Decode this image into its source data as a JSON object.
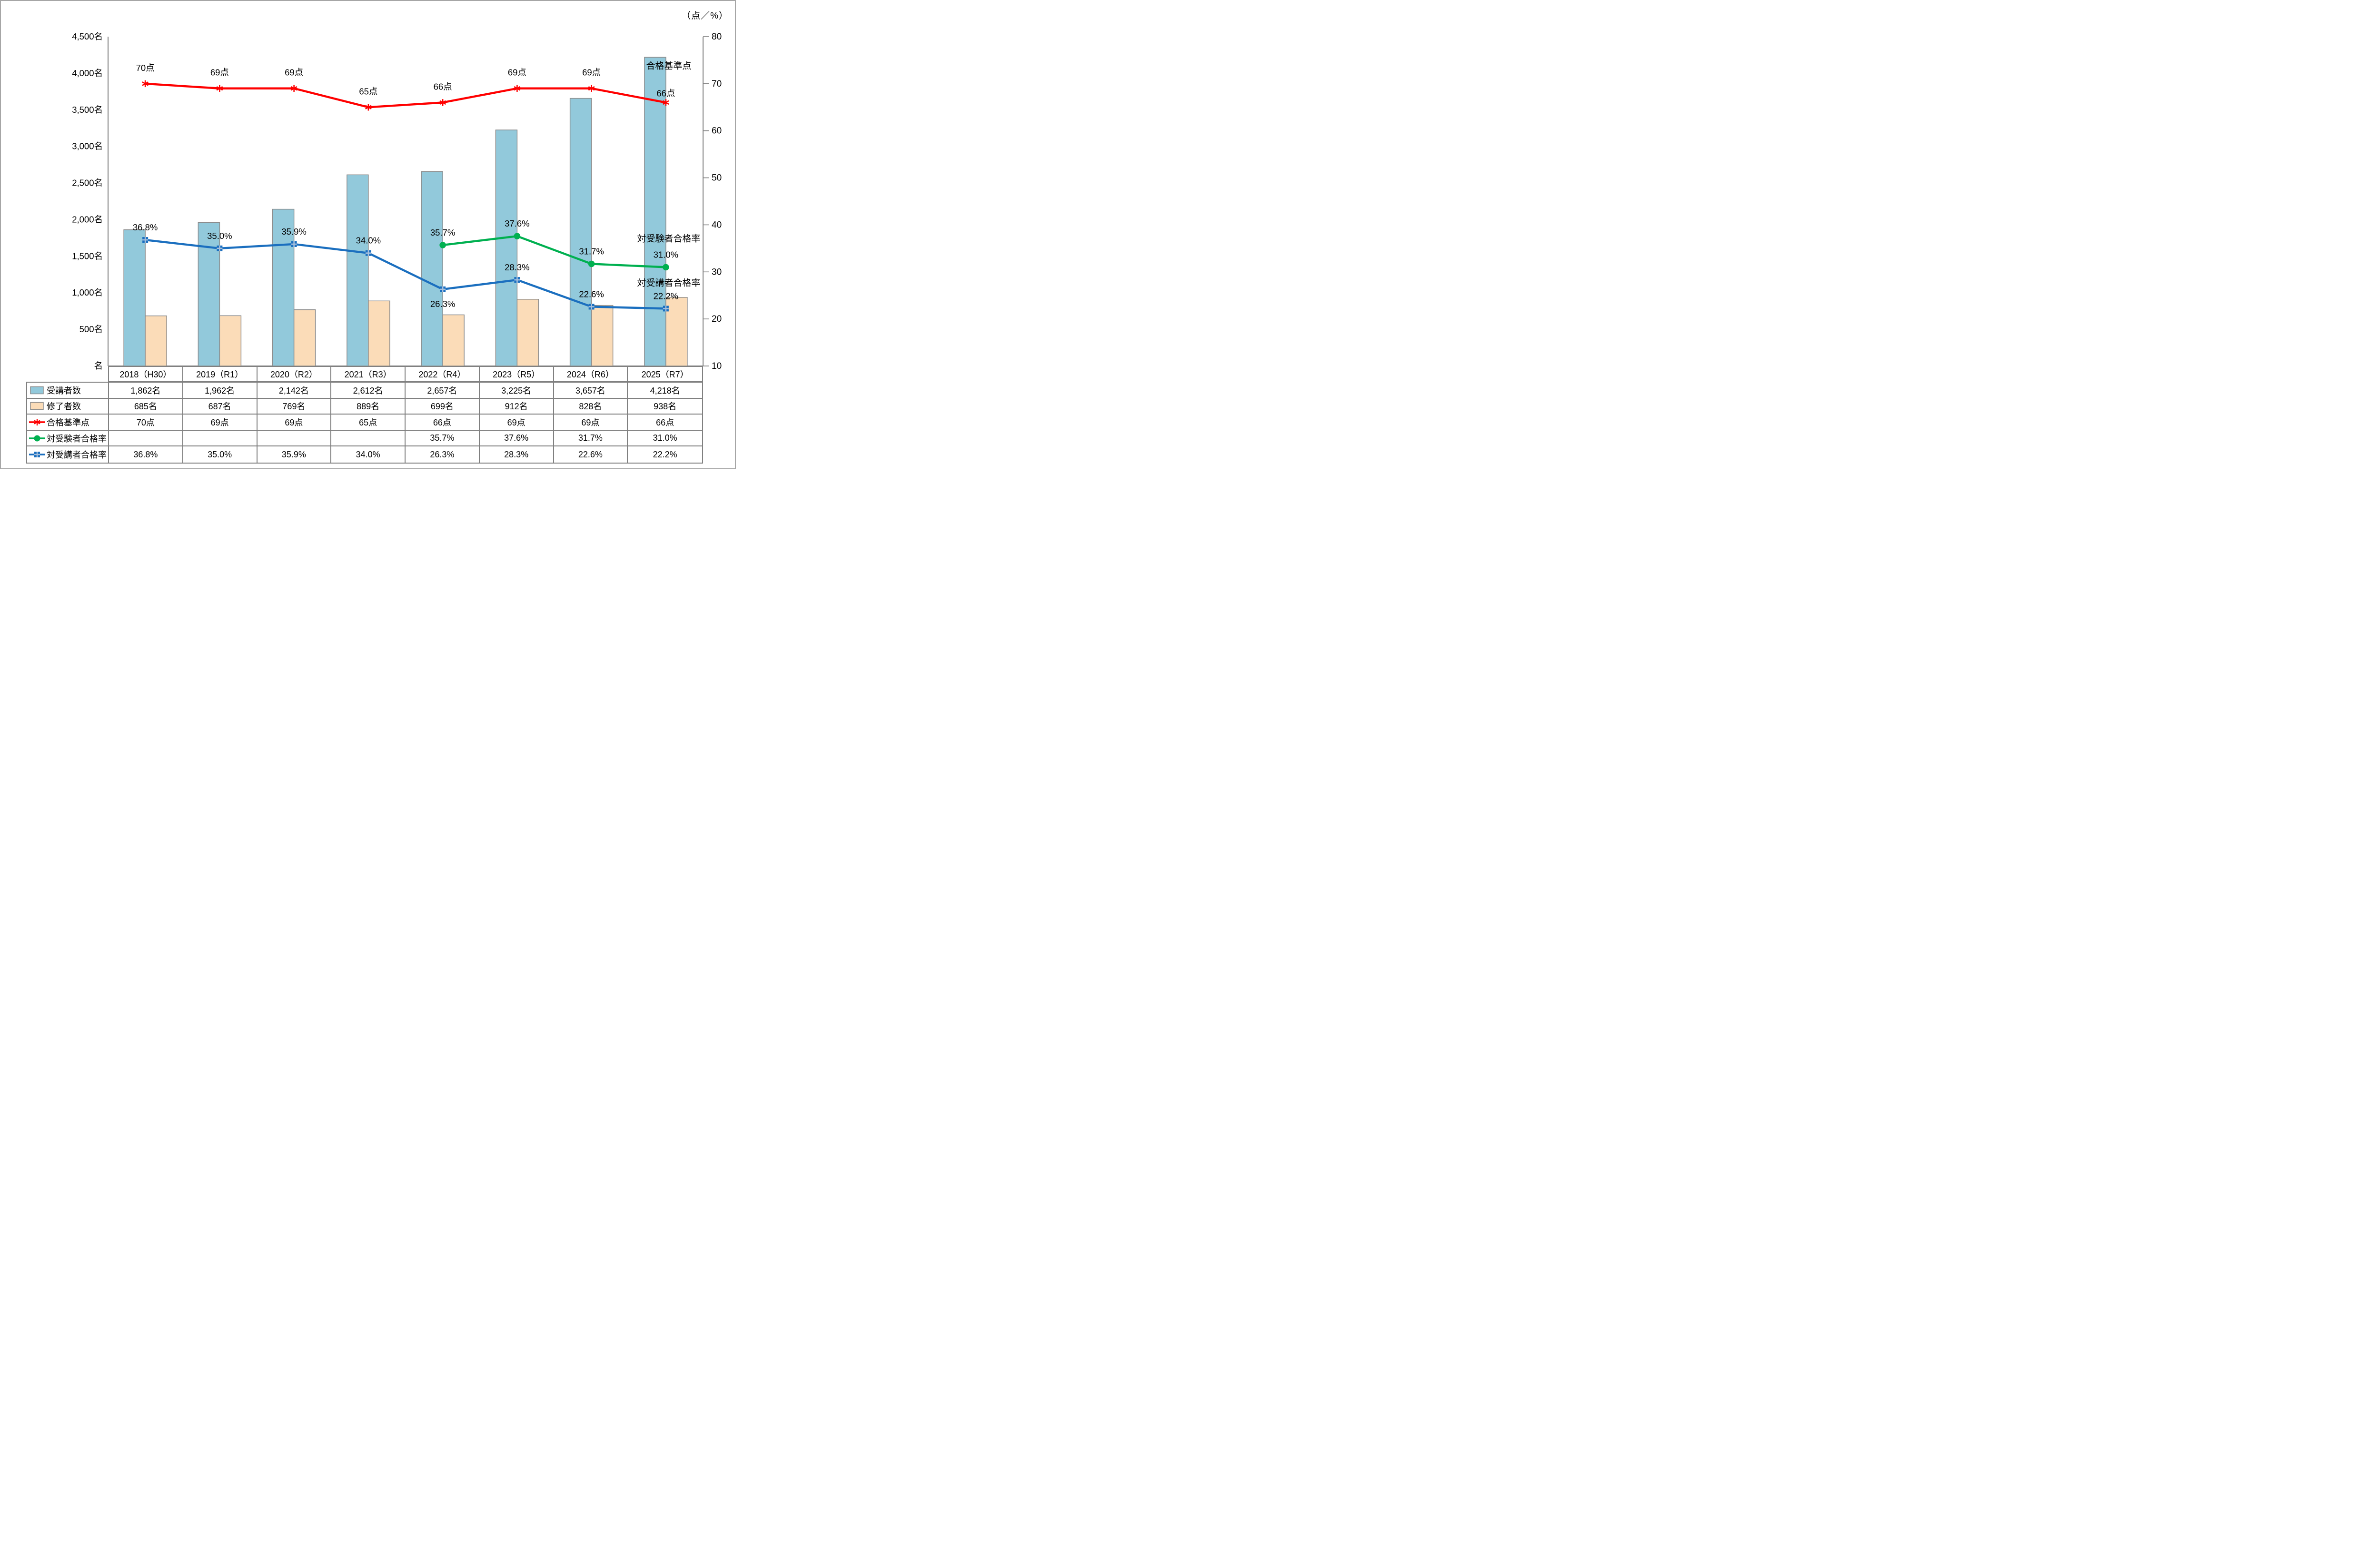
{
  "corner_label": "（点／%）",
  "chart_data": {
    "type": "combo-bar-line",
    "title": "",
    "categories": [
      "2018（H30）",
      "2019（R1）",
      "2020（R2）",
      "2021（R3）",
      "2022（R4）",
      "2023（R5）",
      "2024（R6）",
      "2025（R7）"
    ],
    "left_axis": {
      "unit": "名",
      "min": 0,
      "max": 4500,
      "tick_step": 500,
      "tick_labels": [
        "4,500名",
        "4,000名",
        "3,500名",
        "3,000名",
        "2,500名",
        "2,000名",
        "1,500名",
        "1,000名",
        "500名",
        "名"
      ]
    },
    "right_axis": {
      "unit": "点／%",
      "min": 10,
      "max": 80,
      "tick_step": 10,
      "tick_labels": [
        "80",
        "70",
        "60",
        "50",
        "40",
        "30",
        "20",
        "10"
      ]
    },
    "grid": "off",
    "colors": {
      "bar1": "#92C9DB",
      "bar2": "#FBDCB8",
      "bar_border": "#8C8C8C",
      "line_red": "#FF0000",
      "line_green": "#00B050",
      "line_blue": "#1B6FBF",
      "blue_marker_cross": "#A8C0DC",
      "axis": "#808080",
      "text": "#000000"
    },
    "series": [
      {
        "name": "受講者数",
        "type": "bar",
        "color_key": "bar1",
        "axis": "left",
        "values": [
          1862,
          1962,
          2142,
          2612,
          2657,
          3225,
          3657,
          4218
        ]
      },
      {
        "name": "修了者数",
        "type": "bar",
        "color_key": "bar2",
        "axis": "left",
        "values": [
          685,
          687,
          769,
          889,
          699,
          912,
          828,
          938
        ]
      },
      {
        "name": "合格基準点",
        "type": "line",
        "marker": "asterisk",
        "color_key": "line_red",
        "axis": "right",
        "values": [
          70,
          69,
          69,
          65,
          66,
          69,
          69,
          66
        ],
        "point_labels": [
          "70点",
          "69点",
          "69点",
          "65点",
          "66点",
          "69点",
          "69点",
          "66点"
        ]
      },
      {
        "name": "対受験者合格率",
        "type": "line",
        "marker": "circle",
        "color_key": "line_green",
        "axis": "right",
        "values": [
          null,
          null,
          null,
          null,
          35.7,
          37.6,
          31.7,
          31.0
        ],
        "point_labels": [
          null,
          null,
          null,
          null,
          "35.7%",
          "37.6%",
          "31.7%",
          "31.0%"
        ]
      },
      {
        "name": "対受講者合格率",
        "type": "line",
        "marker": "square-plus",
        "color_key": "line_blue",
        "axis": "right",
        "values": [
          36.8,
          35.0,
          35.9,
          34.0,
          26.3,
          28.3,
          22.6,
          22.2
        ],
        "point_labels": [
          "36.8%",
          "35.0%",
          "35.9%",
          "34.0%",
          "26.3%",
          "28.3%",
          "22.6%",
          "22.2%"
        ]
      }
    ],
    "annotations": [
      {
        "text": "合格基準点",
        "anchor_series": 2,
        "anchor_point": 7
      },
      {
        "text": "対受験者合格率",
        "anchor_series": 3,
        "anchor_point": 7
      },
      {
        "text": "対受講者合格率",
        "anchor_series": 4,
        "anchor_point": 7
      }
    ],
    "legend_position": "table-bottom"
  },
  "table": {
    "rows": [
      {
        "label": "受講者数",
        "swatch": "bar",
        "color_key": "bar1",
        "cells": [
          "1,862名",
          "1,962名",
          "2,142名",
          "2,612名",
          "2,657名",
          "3,225名",
          "3,657名",
          "4,218名"
        ]
      },
      {
        "label": "修了者数",
        "swatch": "bar",
        "color_key": "bar2",
        "cells": [
          "685名",
          "687名",
          "769名",
          "889名",
          "699名",
          "912名",
          "828名",
          "938名"
        ]
      },
      {
        "label": "合格基準点",
        "swatch": "asterisk",
        "color_key": "line_red",
        "cells": [
          "70点",
          "69点",
          "69点",
          "65点",
          "66点",
          "69点",
          "69点",
          "66点"
        ]
      },
      {
        "label": "対受験者合格率",
        "swatch": "circle",
        "color_key": "line_green",
        "cells": [
          "",
          "",
          "",
          "",
          "35.7%",
          "37.6%",
          "31.7%",
          "31.0%"
        ]
      },
      {
        "label": "対受講者合格率",
        "swatch": "square-plus",
        "color_key": "line_blue",
        "cells": [
          "36.8%",
          "35.0%",
          "35.9%",
          "34.0%",
          "26.3%",
          "28.3%",
          "22.6%",
          "22.2%"
        ]
      }
    ]
  }
}
